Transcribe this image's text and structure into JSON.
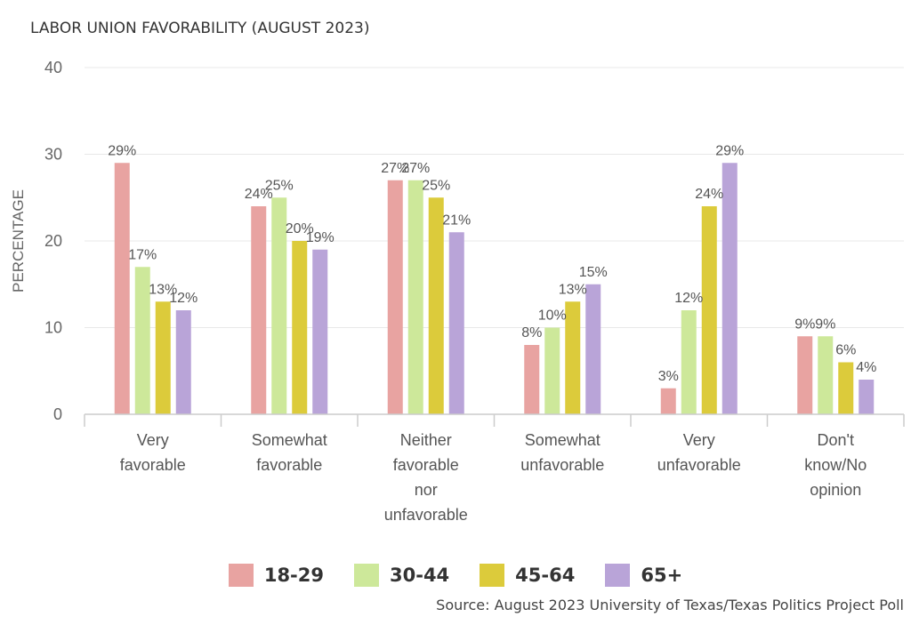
{
  "chart_data": {
    "type": "bar",
    "title": "LABOR UNION FAVORABILITY (AUGUST 2023)",
    "xlabel": "",
    "ylabel": "PERCENTAGE",
    "ylim": [
      0,
      40
    ],
    "yticks": [
      "0",
      "10",
      "20",
      "30",
      "40"
    ],
    "grid": true,
    "legend_position": "bottom",
    "categories": [
      [
        "Very",
        "favorable"
      ],
      [
        "Somewhat",
        "favorable"
      ],
      [
        "Neither",
        "favorable",
        "nor",
        "unfavorable"
      ],
      [
        "Somewhat",
        "unfavorable"
      ],
      [
        "Very",
        "unfavorable"
      ],
      [
        "Don't",
        "know/No",
        "opinion"
      ]
    ],
    "series": [
      {
        "name": "18-29",
        "color": "#e8a3a1",
        "values": [
          29,
          24,
          27,
          8,
          3,
          9
        ],
        "labels": [
          "29%",
          "24%",
          "27%",
          "8%",
          "3%",
          "9%"
        ]
      },
      {
        "name": "30-44",
        "color": "#cde89a",
        "values": [
          17,
          25,
          27,
          10,
          12,
          9
        ],
        "labels": [
          "17%",
          "25%",
          "27%",
          "10%",
          "12%",
          "9%"
        ]
      },
      {
        "name": "45-64",
        "color": "#dccb3b",
        "values": [
          13,
          20,
          25,
          13,
          24,
          6
        ],
        "labels": [
          "13%",
          "20%",
          "25%",
          "13%",
          "24%",
          "6%"
        ]
      },
      {
        "name": "65+",
        "color": "#b9a4d8",
        "values": [
          12,
          19,
          21,
          15,
          29,
          4
        ],
        "labels": [
          "12%",
          "19%",
          "21%",
          "15%",
          "29%",
          "4%"
        ]
      }
    ]
  },
  "source": "Source: August 2023 University of Texas/Texas Politics Project Poll"
}
